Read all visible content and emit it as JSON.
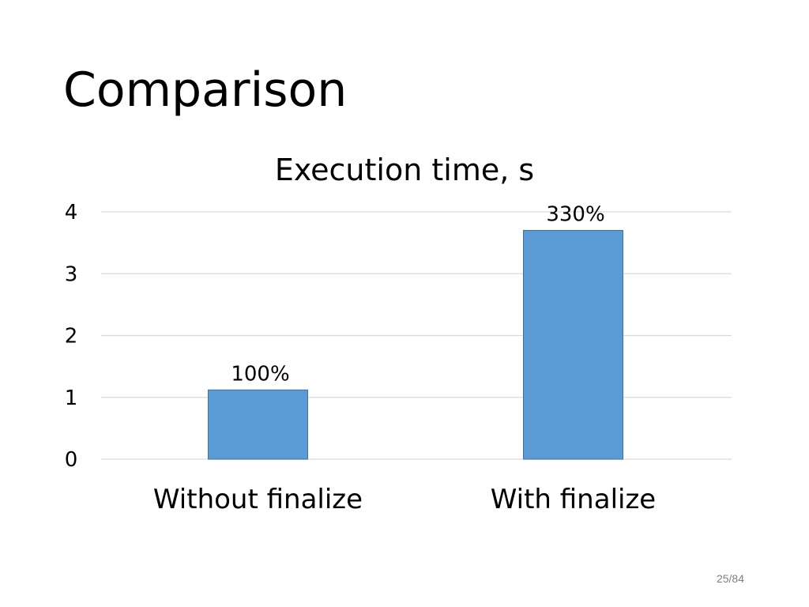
{
  "slide": {
    "title": "Comparison",
    "page_number": "25/84"
  },
  "chart_data": {
    "type": "bar",
    "title": "Execution time, s",
    "categories": [
      "Without finalize",
      "With finalize"
    ],
    "values": [
      1.12,
      3.7
    ],
    "data_labels": [
      "100%",
      "330%"
    ],
    "xlabel": "",
    "ylabel": "",
    "ylim": [
      0,
      4
    ],
    "yticks": [
      0,
      1,
      2,
      3,
      4
    ],
    "grid": true,
    "bar_color": "#5B9BD5",
    "bar_edge_color": "#41719C",
    "grid_color": "#D9D9D9"
  }
}
